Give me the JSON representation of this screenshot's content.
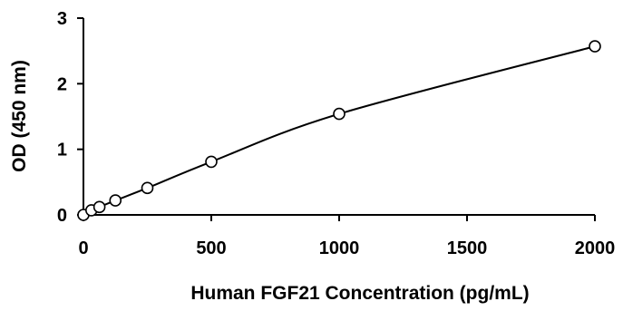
{
  "chart_data": {
    "type": "scatter",
    "title": "",
    "xlabel": "Human FGF21 Concentration (pg/mL)",
    "ylabel": "OD (450 nm)",
    "xlim": [
      0,
      2000
    ],
    "ylim": [
      0,
      3
    ],
    "x_ticks": [
      "0",
      "500",
      "1000",
      "1500",
      "2000"
    ],
    "y_ticks": [
      "0",
      "1",
      "2",
      "3"
    ],
    "grid": false,
    "legend": "none",
    "series": [
      {
        "x": [
          0,
          31.25,
          62.5,
          125,
          250,
          500,
          1000,
          2000
        ],
        "y": [
          0.0,
          0.07,
          0.12,
          0.22,
          0.41,
          0.81,
          1.54,
          2.57
        ],
        "marker": "open-circle",
        "line": "smooth"
      }
    ]
  }
}
